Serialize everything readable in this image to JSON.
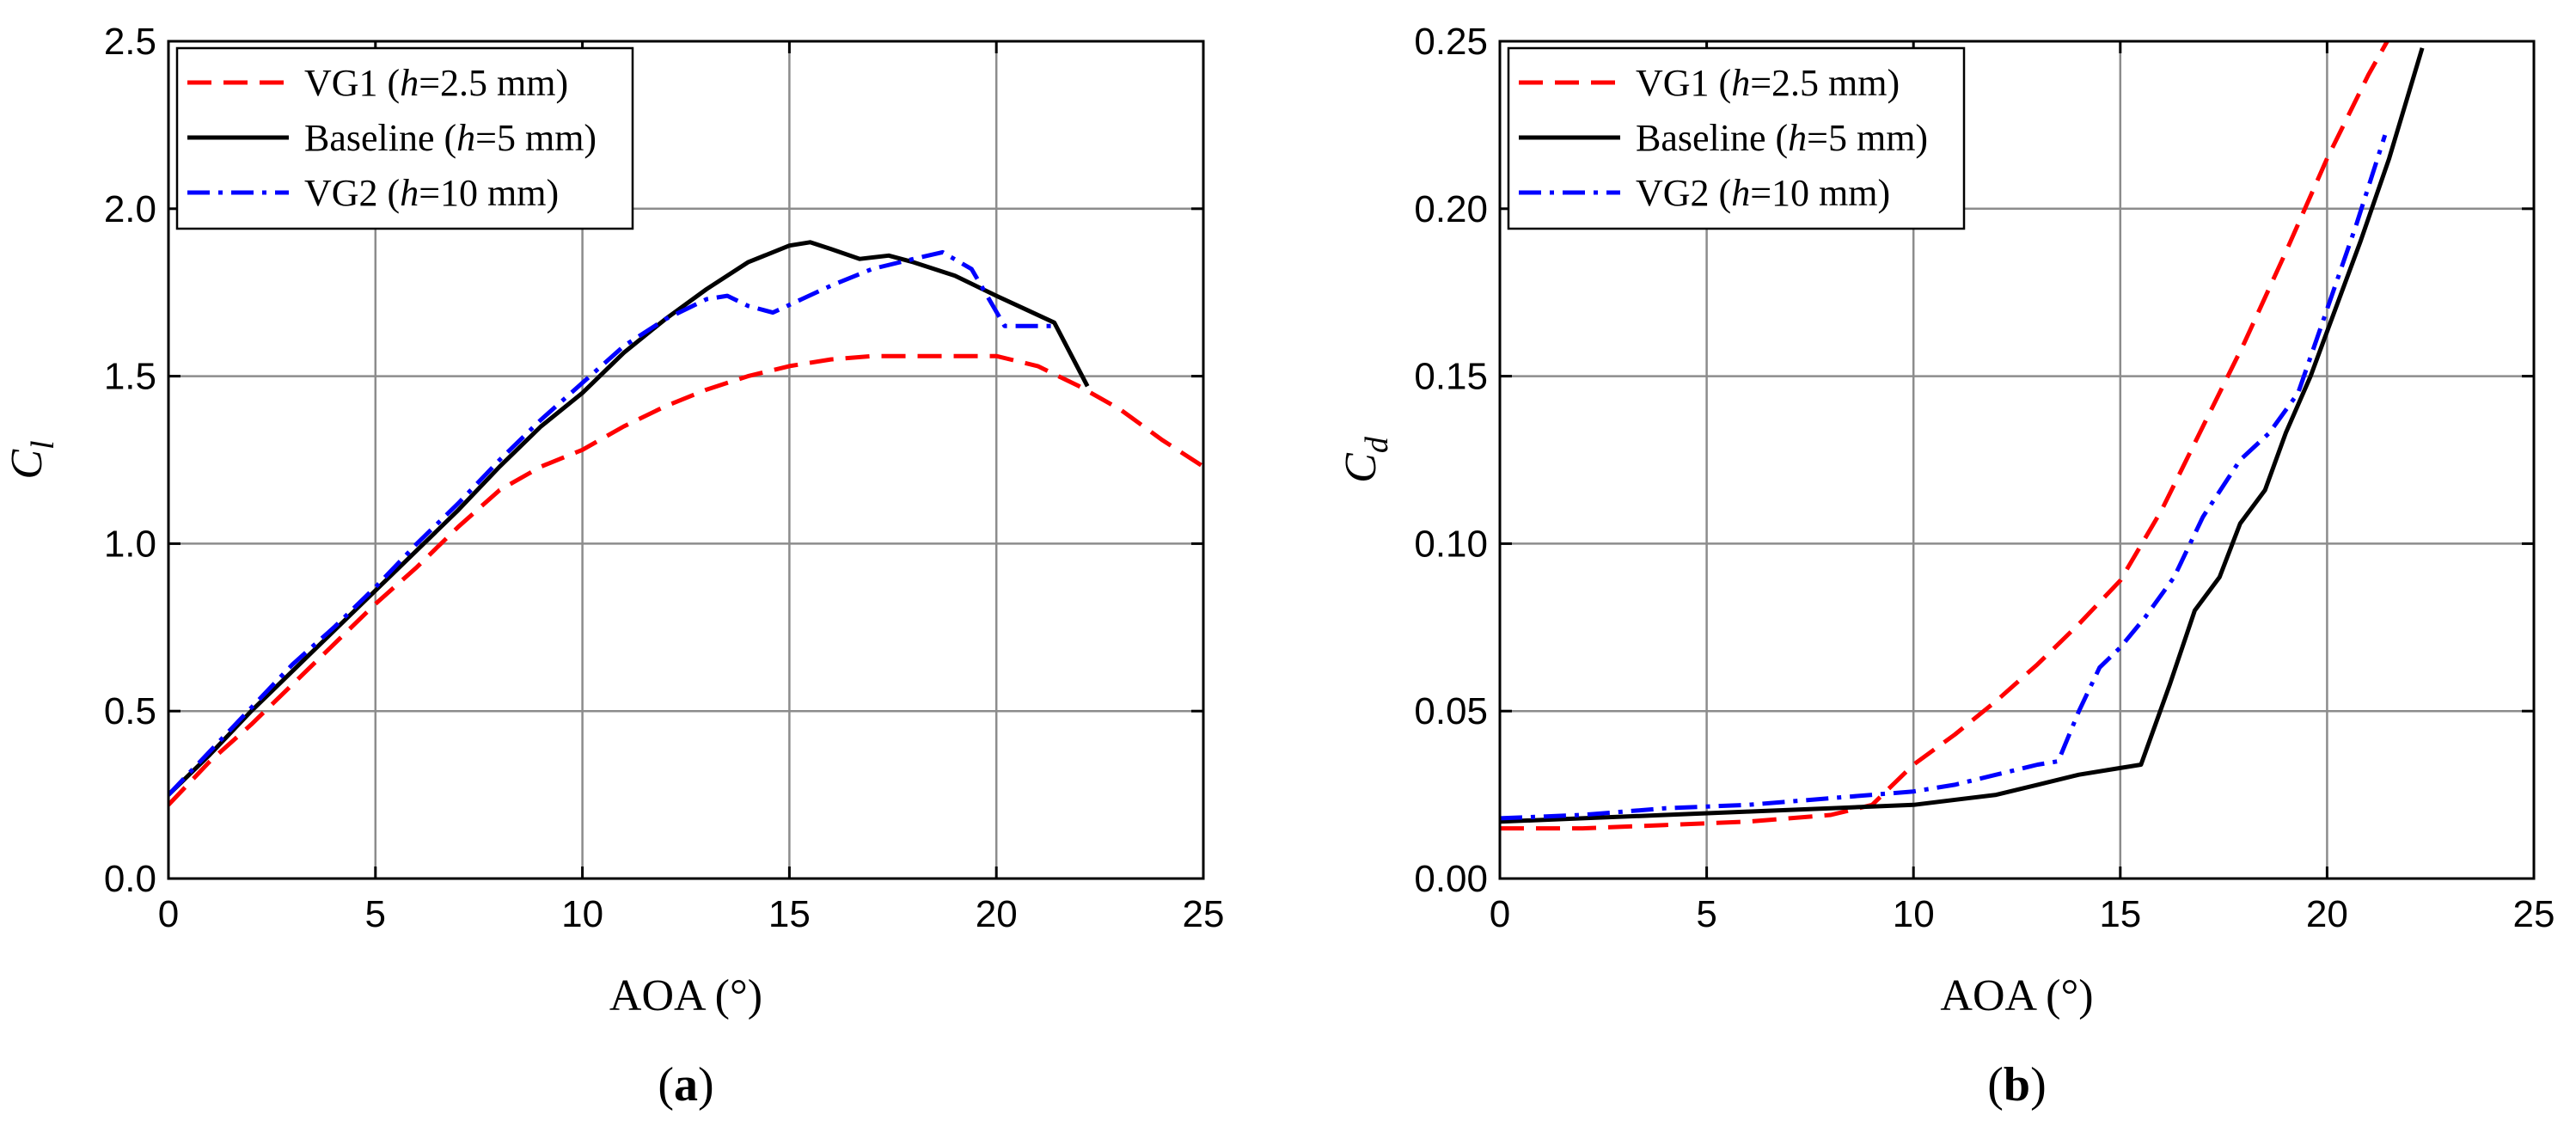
{
  "chart_data": [
    {
      "type": "line",
      "panel_label": "a",
      "xlabel": "AOA (°)",
      "ylabel_main": "C",
      "ylabel_sub": "l",
      "xlim": [
        0,
        25
      ],
      "ylim": [
        0,
        2.5
      ],
      "xticks": [
        0,
        5,
        10,
        15,
        20,
        25
      ],
      "xtick_labels": [
        "0",
        "5",
        "10",
        "15",
        "20",
        "25"
      ],
      "yticks": [
        0,
        0.5,
        1.0,
        1.5,
        2.0,
        2.5
      ],
      "ytick_labels": [
        "0.0",
        "0.5",
        "1.0",
        "1.5",
        "2.0",
        "2.5"
      ],
      "grid": true,
      "legend_position": "top-left",
      "series": [
        {
          "name": "VG1",
          "legend_prefix": "VG1 (",
          "legend_var": "h",
          "legend_suffix": "=2.5 mm)",
          "color": "#ff0000",
          "dash": "dashed",
          "x": [
            0,
            1,
            2,
            3,
            4,
            5,
            6,
            7,
            8,
            9,
            10,
            11,
            12,
            13,
            14,
            15,
            16,
            17,
            18,
            19,
            20,
            21,
            22,
            23,
            24,
            25
          ],
          "y": [
            0.22,
            0.35,
            0.46,
            0.58,
            0.7,
            0.82,
            0.93,
            1.05,
            1.16,
            1.23,
            1.28,
            1.35,
            1.41,
            1.46,
            1.5,
            1.53,
            1.55,
            1.56,
            1.56,
            1.56,
            1.56,
            1.53,
            1.47,
            1.4,
            1.31,
            1.23
          ]
        },
        {
          "name": "Baseline",
          "legend_prefix": "Baseline (",
          "legend_var": "h",
          "legend_suffix": "=5 mm)",
          "color": "#000000",
          "dash": "solid",
          "x": [
            0,
            1,
            2,
            3,
            4,
            5,
            6,
            7,
            8,
            9,
            10,
            11,
            12,
            13,
            14,
            15,
            15.5,
            16,
            16.7,
            17.4,
            18,
            19,
            20,
            20.7,
            21.4,
            22.2
          ],
          "y": [
            0.25,
            0.37,
            0.5,
            0.62,
            0.74,
            0.86,
            0.98,
            1.1,
            1.23,
            1.35,
            1.45,
            1.57,
            1.67,
            1.76,
            1.84,
            1.89,
            1.9,
            1.88,
            1.85,
            1.86,
            1.84,
            1.8,
            1.74,
            1.7,
            1.66,
            1.47
          ]
        },
        {
          "name": "VG2",
          "legend_prefix": "VG2 (",
          "legend_var": "h",
          "legend_suffix": "=10 mm)",
          "color": "#0000ff",
          "dash": "dashdot",
          "x": [
            0,
            1,
            2,
            3,
            4,
            5,
            6,
            7,
            8,
            9,
            10,
            11,
            12,
            13,
            13.5,
            14,
            14.6,
            15.3,
            16,
            17,
            18,
            18.7,
            19.4,
            20.2,
            20.8,
            21.4
          ],
          "y": [
            0.25,
            0.38,
            0.51,
            0.64,
            0.75,
            0.87,
            1.0,
            1.12,
            1.25,
            1.37,
            1.48,
            1.59,
            1.67,
            1.73,
            1.74,
            1.71,
            1.69,
            1.73,
            1.77,
            1.82,
            1.85,
            1.87,
            1.82,
            1.65,
            1.65,
            1.65
          ]
        }
      ]
    },
    {
      "type": "line",
      "panel_label": "b",
      "xlabel": "AOA (°)",
      "ylabel_main": "C",
      "ylabel_sub": "d",
      "xlim": [
        0,
        25
      ],
      "ylim": [
        0,
        0.25
      ],
      "xticks": [
        0,
        5,
        10,
        15,
        20,
        25
      ],
      "xtick_labels": [
        "0",
        "5",
        "10",
        "15",
        "20",
        "25"
      ],
      "yticks": [
        0,
        0.05,
        0.1,
        0.15,
        0.2,
        0.25
      ],
      "ytick_labels": [
        "0.00",
        "0.05",
        "0.10",
        "0.15",
        "0.20",
        "0.25"
      ],
      "grid": true,
      "legend_position": "top-left",
      "series": [
        {
          "name": "VG1",
          "legend_prefix": "VG1 (",
          "legend_var": "h",
          "legend_suffix": "=2.5 mm)",
          "color": "#ff0000",
          "dash": "dashed",
          "x": [
            0,
            2,
            4,
            6,
            8,
            9,
            10,
            11,
            12,
            13,
            14,
            15,
            16,
            17,
            18,
            19,
            20,
            21,
            21.5
          ],
          "y": [
            0.015,
            0.015,
            0.016,
            0.017,
            0.019,
            0.022,
            0.034,
            0.043,
            0.053,
            0.064,
            0.076,
            0.089,
            0.11,
            0.135,
            0.16,
            0.187,
            0.215,
            0.24,
            0.251
          ]
        },
        {
          "name": "Baseline",
          "legend_prefix": "Baseline (",
          "legend_var": "h",
          "legend_suffix": "=5 mm)",
          "color": "#000000",
          "dash": "solid",
          "x": [
            0,
            2,
            4,
            6,
            8,
            10,
            12,
            13,
            14,
            15,
            15.5,
            16.2,
            16.8,
            17.4,
            17.9,
            18.5,
            19,
            19.6,
            20.2,
            20.8,
            21.5,
            22.3
          ],
          "y": [
            0.017,
            0.018,
            0.019,
            0.02,
            0.021,
            0.022,
            0.025,
            0.028,
            0.031,
            0.033,
            0.034,
            0.058,
            0.08,
            0.09,
            0.106,
            0.116,
            0.133,
            0.15,
            0.17,
            0.19,
            0.215,
            0.248
          ]
        },
        {
          "name": "VG2",
          "legend_prefix": "VG2 (",
          "legend_var": "h",
          "legend_suffix": "=10 mm)",
          "color": "#0000ff",
          "dash": "dashdot",
          "x": [
            0,
            2,
            4,
            6,
            8,
            10,
            11,
            12,
            13,
            13.5,
            14,
            14.5,
            15,
            15.6,
            16.3,
            17,
            17.9,
            18.6,
            19.3,
            20,
            20.7,
            21.4
          ],
          "y": [
            0.018,
            0.019,
            0.021,
            0.022,
            0.024,
            0.026,
            0.028,
            0.031,
            0.034,
            0.035,
            0.05,
            0.063,
            0.069,
            0.078,
            0.09,
            0.108,
            0.125,
            0.133,
            0.145,
            0.17,
            0.195,
            0.222
          ]
        }
      ]
    }
  ]
}
